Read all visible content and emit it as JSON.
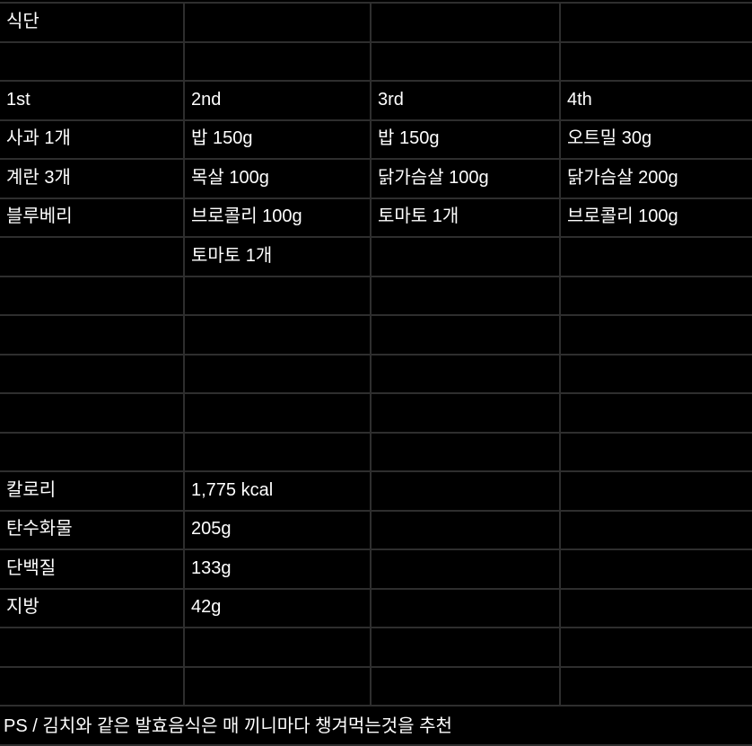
{
  "app": {
    "description": "dark-mode spreadsheet showing a Korean diet plan"
  },
  "colors": {
    "background": "#000000",
    "grid_line": "#2e2e2e",
    "text": "#ffffff"
  },
  "table": {
    "title_cell": "식단",
    "meal_headers": [
      "1st",
      "2nd",
      "3rd",
      "4th"
    ],
    "rows": [
      [
        "식단",
        "",
        "",
        ""
      ],
      [
        "",
        "",
        "",
        ""
      ],
      [
        "1st",
        "2nd",
        "3rd",
        "4th"
      ],
      [
        "사과 1개",
        "밥 150g",
        "밥 150g",
        "오트밀 30g"
      ],
      [
        "계란 3개",
        "목살 100g",
        "닭가슴살 100g",
        "닭가슴살 200g"
      ],
      [
        "블루베리",
        "브로콜리 100g",
        "토마토 1개",
        "브로콜리 100g"
      ],
      [
        "",
        "토마토 1개",
        "",
        ""
      ],
      [
        "",
        "",
        "",
        ""
      ],
      [
        "",
        "",
        "",
        ""
      ],
      [
        "",
        "",
        "",
        ""
      ],
      [
        "",
        "",
        "",
        ""
      ],
      [
        "",
        "",
        "",
        ""
      ],
      [
        "칼로리",
        "1,775 kcal",
        "",
        ""
      ],
      [
        "탄수화물",
        "205g",
        "",
        ""
      ],
      [
        "단백질",
        "133g",
        "",
        ""
      ],
      [
        "지방",
        "42g",
        "",
        ""
      ],
      [
        "",
        "",
        "",
        ""
      ],
      [
        "",
        "",
        "",
        ""
      ]
    ],
    "totals": {
      "calories_label": "칼로리",
      "calories_value": "1,775 kcal",
      "carbs_label": "탄수화물",
      "carbs_value": "205g",
      "protein_label": "단백질",
      "protein_value": "133g",
      "fat_label": "지방",
      "fat_value": "42g"
    },
    "footer_note": "PS / 김치와 같은 발효음식은 매 끼니마다 챙겨먹는것을 추천"
  }
}
